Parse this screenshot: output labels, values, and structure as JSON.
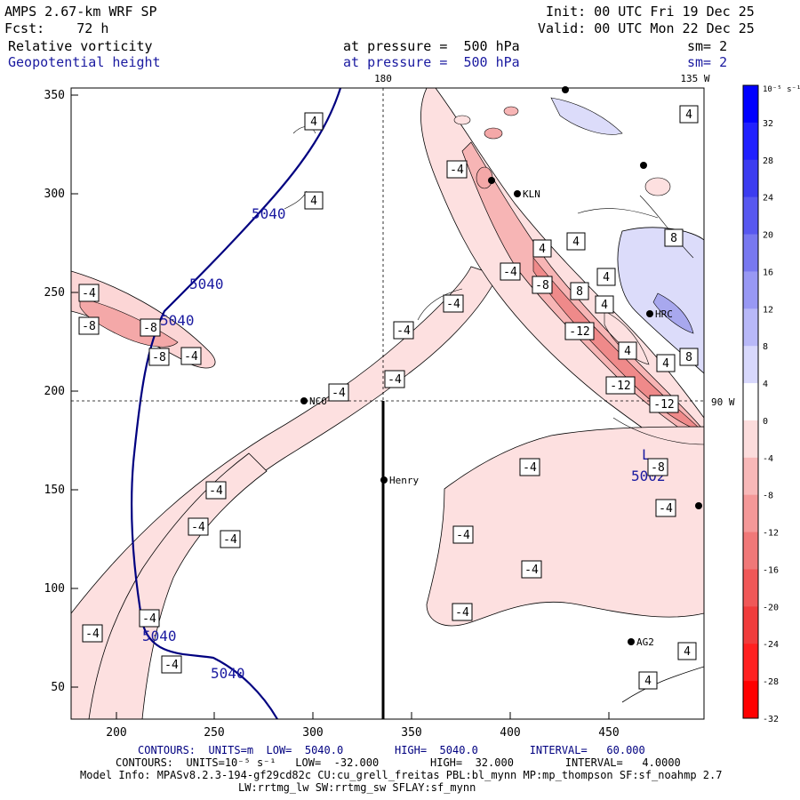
{
  "header": {
    "model": "AMPS 2.67-km WRF SP",
    "init": "Init: 00 UTC Fri 19 Dec 25",
    "fcst": "Fcst:    72 h",
    "valid": "Valid: 00 UTC Mon 22 Dec 25",
    "field1_name": "Relative vorticity",
    "field1_level": "at pressure =  500 hPa",
    "field1_sm": "sm= 2",
    "field2_name": "Geopotential height",
    "field2_level": "at pressure =  500 hPa",
    "field2_sm": "sm= 2"
  },
  "map": {
    "lon_labels": {
      "top_180": "180",
      "top_135w": "135 W",
      "right_90w": "90 W"
    },
    "x_ticks": [
      "200",
      "250",
      "300",
      "350",
      "400",
      "450"
    ],
    "y_ticks": [
      "350",
      "300",
      "250",
      "200",
      "150",
      "100",
      "50"
    ],
    "stations": [
      {
        "name": "NCO"
      },
      {
        "name": "Henry"
      },
      {
        "name": "KLN"
      },
      {
        "name": "HRC"
      },
      {
        "name": "AG2"
      }
    ],
    "height_labels": [
      "5040",
      "5040",
      "5040",
      "5040",
      "5040"
    ],
    "low_label": "L",
    "low_value": "5002",
    "vort_labels": [
      "-4",
      "-8",
      "-8",
      "-8",
      "-4",
      "-4",
      "-4",
      "-4",
      "-4",
      "-4",
      "-4",
      "-4",
      "-4",
      "-4",
      "-4",
      "-4",
      "-4",
      "-4",
      "-4",
      "-4",
      "-8",
      "-12",
      "-12",
      "-12",
      "-8",
      "4",
      "4",
      "4",
      "4",
      "4",
      "4",
      "8",
      "8",
      "4",
      "4",
      "8",
      "4",
      "4",
      "4",
      "-4",
      "-4"
    ]
  },
  "colorbar": {
    "unit": "10⁻⁵ s⁻¹",
    "labels": [
      "32",
      "28",
      "24",
      "20",
      "16",
      "12",
      "8",
      "4",
      "0",
      "-4",
      "-8",
      "-12",
      "-16",
      "-20",
      "-24",
      "-28",
      "-32"
    ],
    "colors": [
      "#0000ff",
      "#2020ff",
      "#3c3cf0",
      "#5858f0",
      "#7878f0",
      "#9898f4",
      "#b8b8f8",
      "#d8d8fc",
      "#ffffff",
      "#fcdcdc",
      "#f8b8b8",
      "#f49898",
      "#f07878",
      "#f05858",
      "#f03c3c",
      "#ff2020",
      "#ff0000"
    ]
  },
  "footer": {
    "line1": "CONTOURS:  UNITS=m  LOW=  5040.0        HIGH=  5040.0        INTERVAL=   60.000",
    "line2": "CONTOURS:  UNITS=10⁻⁵ s⁻¹   LOW=  -32.000        HIGH=  32.000        INTERVAL=   4.0000",
    "line3": "Model Info: MPASv8.2.3-194-gf29cd82c CU:cu_grell_freitas PBL:bl_mynn MP:mp_thompson SF:sf_noahmp 2.7",
    "line4": "LW:rrtmg_lw SW:rrtmg_sw SFLAY:sf_mynn"
  }
}
